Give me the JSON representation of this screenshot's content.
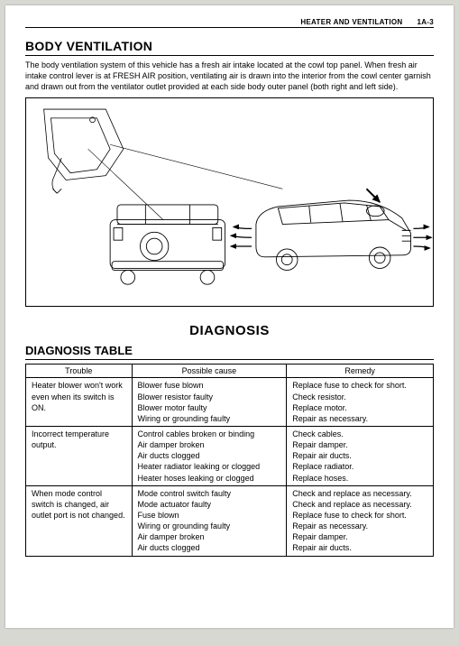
{
  "header": {
    "section_title": "HEATER AND VENTILATION",
    "page_ref": "1A-3"
  },
  "body_vent": {
    "heading": "BODY VENTILATION",
    "paragraph": "The body ventilation system of this vehicle has a fresh air intake located at the cowl top panel. When fresh air intake control lever is at FRESH AIR position, ventilating air is drawn into the interior from the cowl center garnish and drawn out from the ventilator outlet provided at each side body outer panel (both right and left side)."
  },
  "diagnosis": {
    "heading": "DIAGNOSIS",
    "table_heading": "DIAGNOSIS TABLE",
    "columns": {
      "trouble": "Trouble",
      "cause": "Possible cause",
      "remedy": "Remedy"
    },
    "rows": [
      {
        "trouble": "Heater blower won't work even when its switch is ON.",
        "causes": [
          "Blower fuse blown",
          "Blower resistor faulty",
          "Blower motor faulty",
          "Wiring or grounding faulty"
        ],
        "remedies": [
          "Replace fuse to check for short.",
          "Check resistor.",
          "Replace motor.",
          "Repair as necessary."
        ]
      },
      {
        "trouble": "Incorrect temperature output.",
        "causes": [
          "Control cables broken or binding",
          "Air damper broken",
          "Air ducts clogged",
          "Heater radiator leaking or clogged",
          "Heater hoses leaking or clogged"
        ],
        "remedies": [
          "Check cables.",
          "Repair damper.",
          "Repair air ducts.",
          "Replace radiator.",
          "Replace hoses."
        ]
      },
      {
        "trouble": "When mode control switch is changed, air outlet port is not changed.",
        "causes": [
          "Mode control switch faulty",
          "Mode actuator faulty",
          "Fuse blown",
          "Wiring or grounding faulty",
          "Air damper broken",
          "Air ducts clogged"
        ],
        "remedies": [
          "Check and replace as necessary.",
          "Check and replace as necessary.",
          "Replace fuse to check for short.",
          "Repair as necessary.",
          "Repair damper.",
          "Repair air ducts."
        ]
      }
    ]
  }
}
